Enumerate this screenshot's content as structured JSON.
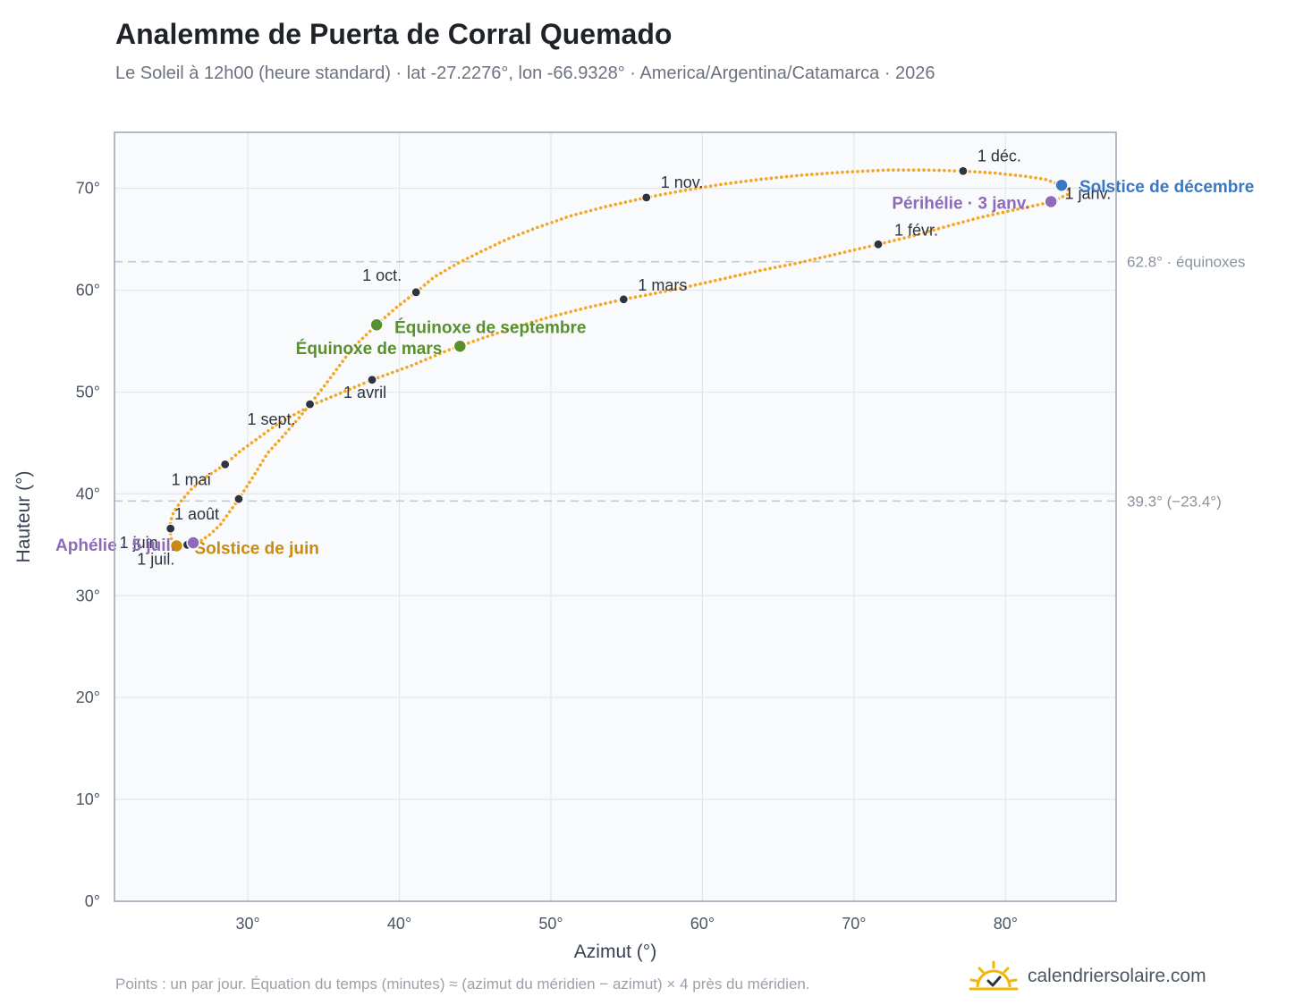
{
  "header": {
    "title": "Analemme de Puerta de Corral Quemado",
    "subtitle": "Le Soleil à 12h00 (heure standard) · lat -27.2276°, lon -66.9328° · America/Argentina/Catamarca · 2026"
  },
  "footer": {
    "note": "Points : un par jour. Équation du temps (minutes) ≈ (azimut du méridien − azimut) × 4 près du méridien.",
    "brand": "calendriersolaire.com",
    "brand_icon": "sun-logo-icon"
  },
  "colors": {
    "curve": "#f5a623",
    "month_marker": "#2d3340",
    "equinox": "#5a8f2e",
    "june_solstice": "#c98a10",
    "december_solstice": "#3a78c2",
    "apsis": "#8e6bb8",
    "reference_line": "#c3cad4",
    "plot_background": "#f8fafc"
  },
  "chart_data": {
    "type": "scatter",
    "xlabel": "Azimut (°)",
    "ylabel": "Hauteur (°)",
    "xlim": [
      21.2,
      87.3
    ],
    "ylim": [
      0,
      75.5
    ],
    "xticks": [
      30,
      40,
      50,
      60,
      70,
      80
    ],
    "yticks": [
      0,
      10,
      20,
      30,
      40,
      50,
      60,
      70
    ],
    "x_tick_labels": [
      "30°",
      "40°",
      "50°",
      "60°",
      "70°",
      "80°"
    ],
    "y_tick_labels": [
      "0°",
      "10°",
      "20°",
      "30°",
      "40°",
      "50°",
      "60°",
      "70°"
    ],
    "grid": true,
    "reference_lines": [
      {
        "y": 62.8,
        "label": "62.8° · équinoxes"
      },
      {
        "y": 39.3,
        "label": "39.3° (−23.4°)"
      }
    ],
    "month_markers": [
      {
        "label": "1 janv.",
        "x": 83.2,
        "y": 68.8
      },
      {
        "label": "1 févr.",
        "x": 71.6,
        "y": 64.5
      },
      {
        "label": "1 mars",
        "x": 54.8,
        "y": 59.1
      },
      {
        "label": "1 avril",
        "x": 38.2,
        "y": 51.2
      },
      {
        "label": "1 mai",
        "x": 28.5,
        "y": 42.9
      },
      {
        "label": "1 juin",
        "x": 24.9,
        "y": 36.6
      },
      {
        "label": "1 juil.",
        "x": 26.0,
        "y": 35.0
      },
      {
        "label": "1 août",
        "x": 29.4,
        "y": 39.5
      },
      {
        "label": "1 sept.",
        "x": 34.1,
        "y": 48.8
      },
      {
        "label": "1 oct.",
        "x": 41.1,
        "y": 59.8
      },
      {
        "label": "1 nov.",
        "x": 56.3,
        "y": 69.1
      },
      {
        "label": "1 déc.",
        "x": 77.2,
        "y": 71.7
      }
    ],
    "events": [
      {
        "label": "Équinoxe de mars",
        "x": 44.0,
        "y": 54.5,
        "kind": "equinox"
      },
      {
        "label": "Équinoxe de septembre",
        "x": 38.5,
        "y": 56.6,
        "kind": "equinox"
      },
      {
        "label": "Solstice de juin",
        "x": 25.3,
        "y": 34.9,
        "kind": "june_solstice"
      },
      {
        "label": "Solstice de décembre",
        "x": 83.7,
        "y": 70.3,
        "kind": "december_solstice"
      },
      {
        "label": "Aphélie · 5 juil.",
        "x": 26.4,
        "y": 35.2,
        "kind": "apsis"
      },
      {
        "label": "Périhélie · 3 janv.",
        "x": 83.0,
        "y": 68.7,
        "kind": "apsis"
      }
    ],
    "series": [
      {
        "points": [
          [
            83.2,
            68.8
          ],
          [
            83.3,
            68.9
          ],
          [
            82.8,
            68.6
          ],
          [
            81.6,
            68.2
          ],
          [
            80.0,
            67.7
          ],
          [
            78.2,
            67.1
          ],
          [
            76.2,
            66.3
          ],
          [
            73.8,
            65.3
          ],
          [
            71.6,
            64.5
          ],
          [
            69.0,
            63.6
          ],
          [
            66.4,
            62.7
          ],
          [
            64.0,
            62.0
          ],
          [
            61.6,
            61.2
          ],
          [
            59.2,
            60.4
          ],
          [
            56.9,
            59.7
          ],
          [
            54.8,
            59.1
          ],
          [
            52.4,
            58.3
          ],
          [
            50.0,
            57.4
          ],
          [
            47.7,
            56.4
          ],
          [
            45.5,
            55.3
          ],
          [
            43.2,
            54.1
          ],
          [
            40.8,
            52.6
          ],
          [
            38.2,
            51.2
          ],
          [
            36.3,
            50.0
          ],
          [
            34.5,
            48.9
          ],
          [
            33.2,
            47.9
          ],
          [
            31.9,
            46.8
          ],
          [
            30.8,
            45.6
          ],
          [
            29.5,
            44.2
          ],
          [
            28.5,
            42.9
          ],
          [
            27.3,
            41.7
          ],
          [
            26.3,
            40.5
          ],
          [
            25.6,
            39.3
          ],
          [
            25.1,
            38.2
          ],
          [
            24.9,
            37.3
          ],
          [
            24.9,
            36.6
          ],
          [
            24.9,
            35.9
          ],
          [
            25.0,
            35.3
          ],
          [
            25.3,
            34.9
          ],
          [
            25.6,
            34.7
          ],
          [
            25.8,
            34.8
          ],
          [
            26.0,
            35.0
          ],
          [
            26.3,
            35.1
          ],
          [
            26.9,
            35.4
          ],
          [
            27.5,
            36.0
          ],
          [
            28.2,
            37.0
          ],
          [
            29.4,
            39.5
          ],
          [
            30.4,
            41.8
          ],
          [
            31.3,
            44.0
          ],
          [
            32.4,
            45.8
          ],
          [
            33.4,
            47.5
          ],
          [
            34.1,
            48.8
          ],
          [
            35.0,
            50.5
          ],
          [
            36.0,
            52.5
          ],
          [
            36.9,
            54.3
          ],
          [
            38.5,
            56.6
          ],
          [
            39.8,
            58.3
          ],
          [
            41.1,
            59.8
          ],
          [
            42.3,
            61.3
          ],
          [
            43.8,
            62.6
          ],
          [
            45.4,
            63.8
          ],
          [
            47.1,
            65.0
          ],
          [
            49.0,
            66.1
          ],
          [
            51.3,
            67.3
          ],
          [
            53.6,
            68.2
          ],
          [
            56.3,
            69.1
          ],
          [
            58.8,
            69.8
          ],
          [
            61.3,
            70.4
          ],
          [
            63.9,
            70.9
          ],
          [
            66.6,
            71.3
          ],
          [
            69.4,
            71.6
          ],
          [
            72.2,
            71.8
          ],
          [
            74.7,
            71.8
          ],
          [
            77.2,
            71.7
          ],
          [
            79.3,
            71.5
          ],
          [
            81.2,
            71.2
          ],
          [
            82.6,
            70.9
          ],
          [
            83.7,
            70.3
          ],
          [
            84.2,
            69.8
          ],
          [
            84.1,
            69.4
          ],
          [
            83.2,
            68.8
          ]
        ]
      }
    ]
  }
}
